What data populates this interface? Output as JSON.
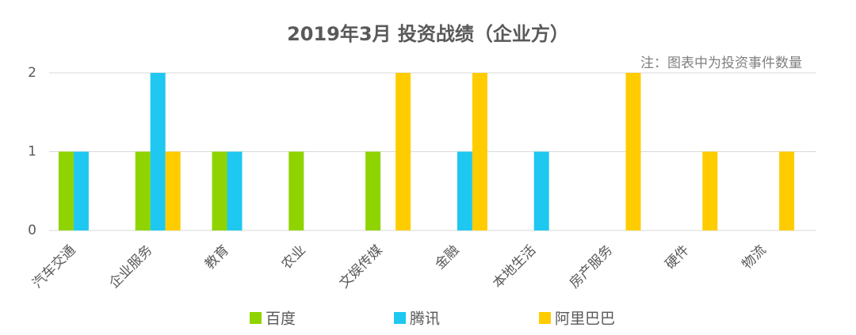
{
  "chart_data": {
    "type": "bar",
    "title": "2019年3月 投资战绩（企业方）",
    "annotation": "注：图表中为投资事件数量",
    "categories": [
      "汽车交通",
      "企业服务",
      "教育",
      "农业",
      "文娱传媒",
      "金融",
      "本地生活",
      "房产服务",
      "硬件",
      "物流"
    ],
    "series": [
      {
        "name": "百度",
        "color": "#8fd400",
        "values": [
          1,
          1,
          1,
          1,
          1,
          0,
          0,
          0,
          0,
          0
        ]
      },
      {
        "name": "腾讯",
        "color": "#1ec8f0",
        "values": [
          1,
          2,
          1,
          0,
          0,
          1,
          1,
          0,
          0,
          0
        ]
      },
      {
        "name": "阿里巴巴",
        "color": "#ffcc00",
        "values": [
          0,
          1,
          0,
          0,
          2,
          2,
          0,
          2,
          1,
          1
        ]
      }
    ],
    "ylim": [
      0,
      2
    ],
    "yticks": [
      0,
      1,
      2
    ],
    "grid": true
  }
}
